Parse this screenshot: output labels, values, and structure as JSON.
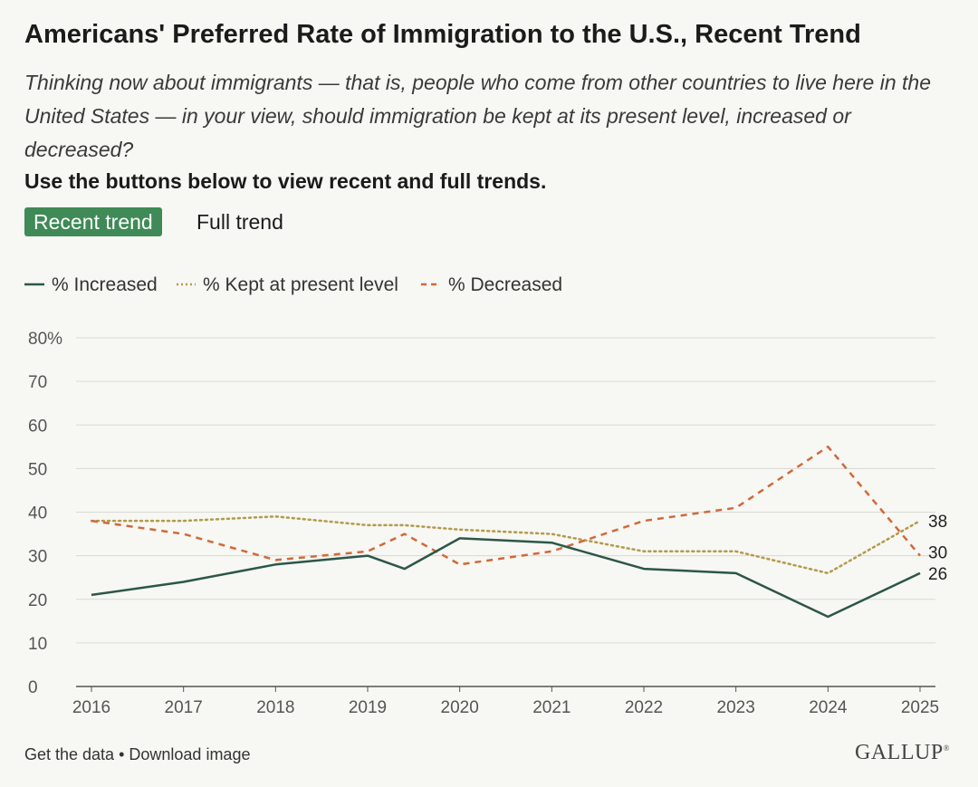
{
  "title": "Americans' Preferred Rate of Immigration to the U.S., Recent Trend",
  "subtitle": "Thinking now about immigrants — that is, people who come from other countries to live here in the United States — in your view, should immigration be kept at its present level, increased or decreased?",
  "instruction": "Use the buttons below to view recent and full trends.",
  "buttons": {
    "recent": "Recent trend",
    "full": "Full trend"
  },
  "footer": {
    "get_data": "Get the data",
    "separator": " • ",
    "download": "Download image"
  },
  "logo": "GALLUP",
  "colors": {
    "increased": "#2b5748",
    "kept": "#b29a4a",
    "decreased": "#d0693a",
    "active_button": "#3f8a57",
    "grid": "#d9d9d4"
  },
  "chart_data": {
    "type": "line",
    "ylim": [
      0,
      80
    ],
    "y_ticks": [
      0,
      10,
      20,
      30,
      40,
      50,
      60,
      70,
      80
    ],
    "y_tick_labels": [
      "0",
      "10",
      "20",
      "30",
      "40",
      "50",
      "60",
      "70",
      "80%"
    ],
    "x_ticks": [
      2016,
      2017,
      2018,
      2019,
      2020,
      2021,
      2022,
      2023,
      2024,
      2025
    ],
    "x_tick_labels": [
      "2016",
      "2017",
      "2018",
      "2019",
      "2020",
      "2021",
      "2022",
      "2023",
      "2024",
      "2025"
    ],
    "series": [
      {
        "name": "% Increased",
        "style": "solid",
        "color": "#2b5748",
        "x": [
          2016,
          2017,
          2018,
          2019,
          2019.4,
          2020,
          2021,
          2022,
          2023,
          2024,
          2025
        ],
        "y": [
          21,
          24,
          28,
          30,
          27,
          34,
          33,
          27,
          26,
          16,
          26
        ],
        "end_label": "26"
      },
      {
        "name": "% Kept at present level",
        "style": "dotted",
        "color": "#b29a4a",
        "x": [
          2016,
          2017,
          2018,
          2019,
          2019.4,
          2020,
          2021,
          2022,
          2023,
          2024,
          2025
        ],
        "y": [
          38,
          38,
          39,
          37,
          37,
          36,
          35,
          31,
          31,
          26,
          38
        ],
        "end_label": "38"
      },
      {
        "name": "% Decreased",
        "style": "dashed",
        "color": "#d0693a",
        "x": [
          2016,
          2017,
          2018,
          2019,
          2019.4,
          2020,
          2021,
          2022,
          2023,
          2024,
          2025
        ],
        "y": [
          38,
          35,
          29,
          31,
          35,
          28,
          31,
          38,
          41,
          55,
          30
        ],
        "end_label": "30"
      }
    ]
  }
}
